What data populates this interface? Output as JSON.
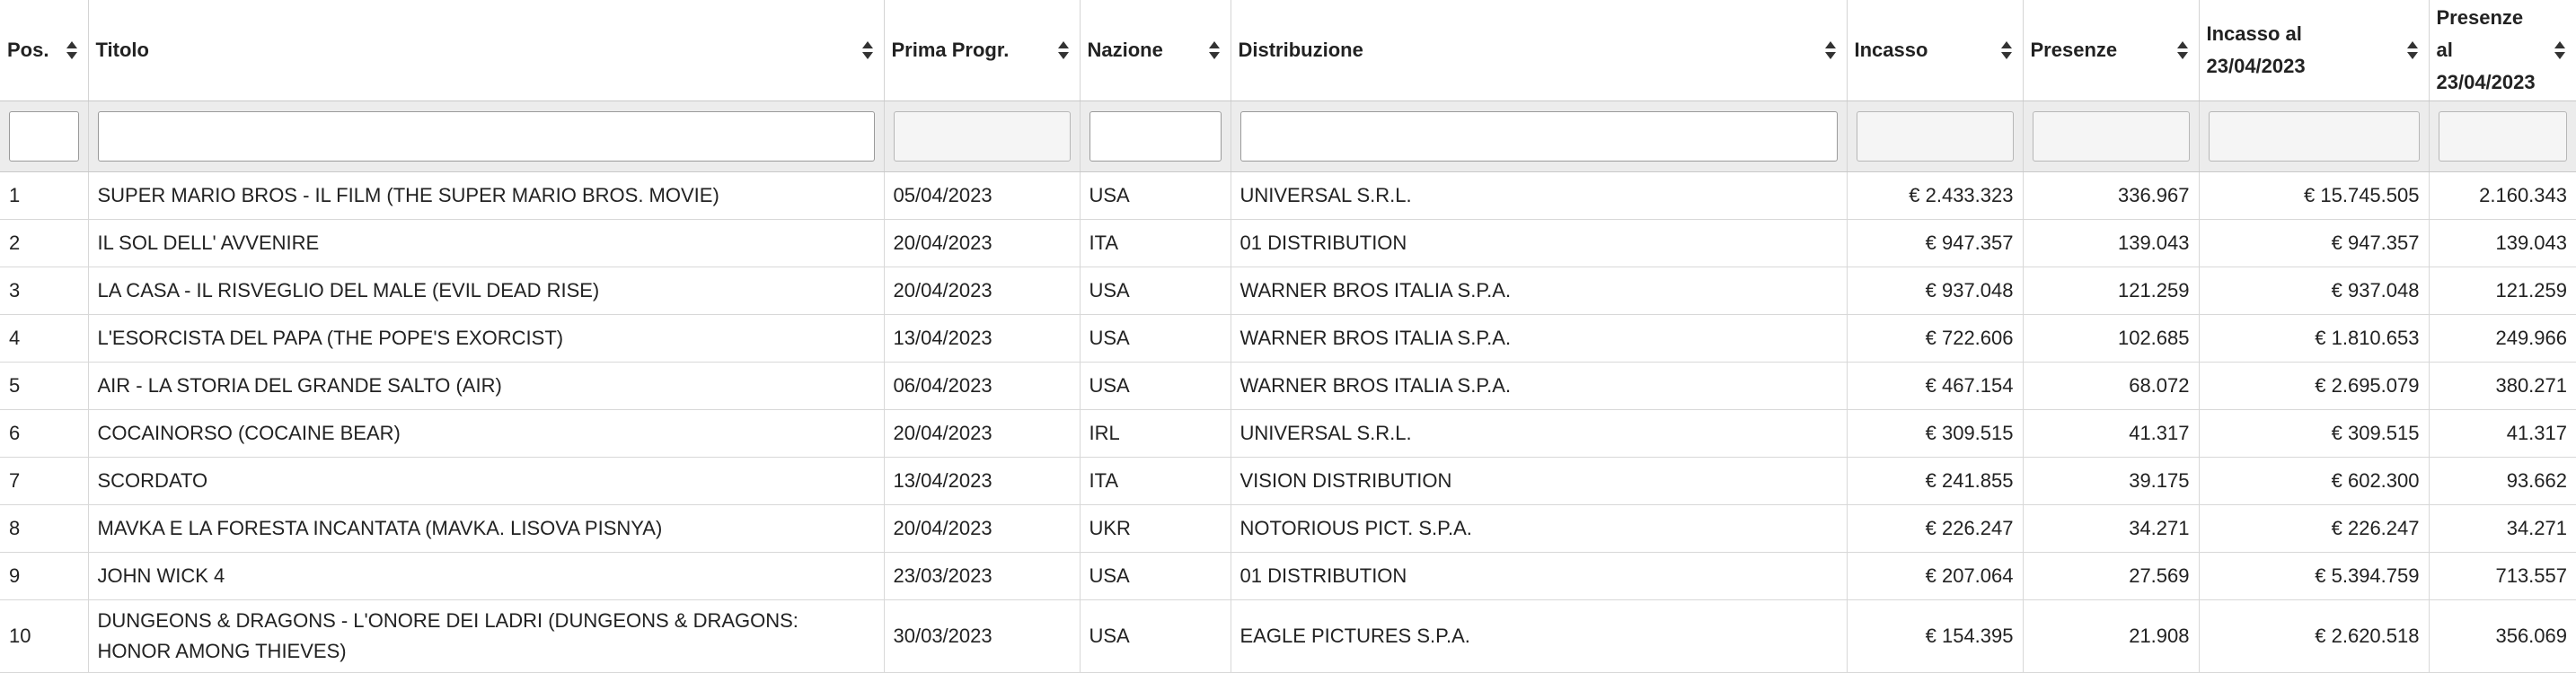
{
  "columns": [
    {
      "label": "Pos."
    },
    {
      "label": "Titolo"
    },
    {
      "label": "Prima Progr."
    },
    {
      "label": "Nazione"
    },
    {
      "label": "Distribuzione"
    },
    {
      "label": "Incasso"
    },
    {
      "label": "Presenze"
    },
    {
      "label": "Incasso al 23/04/2023"
    },
    {
      "label": "Presenze al 23/04/2023"
    }
  ],
  "filters": [
    "",
    "",
    "",
    "",
    "",
    "",
    "",
    "",
    ""
  ],
  "rows": [
    {
      "pos": "1",
      "titolo": "SUPER MARIO BROS - IL FILM (THE SUPER MARIO BROS. MOVIE)",
      "prima": "05/04/2023",
      "nazione": "USA",
      "distribuzione": "UNIVERSAL S.R.L.",
      "incasso": "€ 2.433.323",
      "presenze": "336.967",
      "incasso_tot": "€ 15.745.505",
      "presenze_tot": "2.160.343"
    },
    {
      "pos": "2",
      "titolo": "IL SOL DELL' AVVENIRE",
      "prima": "20/04/2023",
      "nazione": "ITA",
      "distribuzione": "01 DISTRIBUTION",
      "incasso": "€ 947.357",
      "presenze": "139.043",
      "incasso_tot": "€ 947.357",
      "presenze_tot": "139.043"
    },
    {
      "pos": "3",
      "titolo": "LA CASA - IL RISVEGLIO DEL MALE (EVIL DEAD RISE)",
      "prima": "20/04/2023",
      "nazione": "USA",
      "distribuzione": "WARNER BROS ITALIA S.P.A.",
      "incasso": "€ 937.048",
      "presenze": "121.259",
      "incasso_tot": "€ 937.048",
      "presenze_tot": "121.259"
    },
    {
      "pos": "4",
      "titolo": "L'ESORCISTA DEL PAPA (THE POPE'S EXORCIST)",
      "prima": "13/04/2023",
      "nazione": "USA",
      "distribuzione": "WARNER BROS ITALIA S.P.A.",
      "incasso": "€ 722.606",
      "presenze": "102.685",
      "incasso_tot": "€ 1.810.653",
      "presenze_tot": "249.966"
    },
    {
      "pos": "5",
      "titolo": "AIR - LA STORIA DEL GRANDE SALTO (AIR)",
      "prima": "06/04/2023",
      "nazione": "USA",
      "distribuzione": "WARNER BROS ITALIA S.P.A.",
      "incasso": "€ 467.154",
      "presenze": "68.072",
      "incasso_tot": "€ 2.695.079",
      "presenze_tot": "380.271"
    },
    {
      "pos": "6",
      "titolo": "COCAINORSO (COCAINE BEAR)",
      "prima": "20/04/2023",
      "nazione": "IRL",
      "distribuzione": "UNIVERSAL S.R.L.",
      "incasso": "€ 309.515",
      "presenze": "41.317",
      "incasso_tot": "€ 309.515",
      "presenze_tot": "41.317"
    },
    {
      "pos": "7",
      "titolo": "SCORDATO",
      "prima": "13/04/2023",
      "nazione": "ITA",
      "distribuzione": "VISION DISTRIBUTION",
      "incasso": "€ 241.855",
      "presenze": "39.175",
      "incasso_tot": "€ 602.300",
      "presenze_tot": "93.662"
    },
    {
      "pos": "8",
      "titolo": "MAVKA E LA FORESTA INCANTATA (MAVKA. LISOVA PISNYA)",
      "prima": "20/04/2023",
      "nazione": "UKR",
      "distribuzione": "NOTORIOUS PICT. S.P.A.",
      "incasso": "€ 226.247",
      "presenze": "34.271",
      "incasso_tot": "€ 226.247",
      "presenze_tot": "34.271"
    },
    {
      "pos": "9",
      "titolo": "JOHN WICK 4",
      "prima": "23/03/2023",
      "nazione": "USA",
      "distribuzione": "01 DISTRIBUTION",
      "incasso": "€ 207.064",
      "presenze": "27.569",
      "incasso_tot": "€ 5.394.759",
      "presenze_tot": "713.557"
    },
    {
      "pos": "10",
      "titolo": "DUNGEONS & DRAGONS - L'ONORE DEI LADRI (DUNGEONS & DRAGONS: HONOR AMONG THIEVES)",
      "prima": "30/03/2023",
      "nazione": "USA",
      "distribuzione": "EAGLE PICTURES S.P.A.",
      "incasso": "€ 154.395",
      "presenze": "21.908",
      "incasso_tot": "€ 2.620.518",
      "presenze_tot": "356.069"
    }
  ]
}
